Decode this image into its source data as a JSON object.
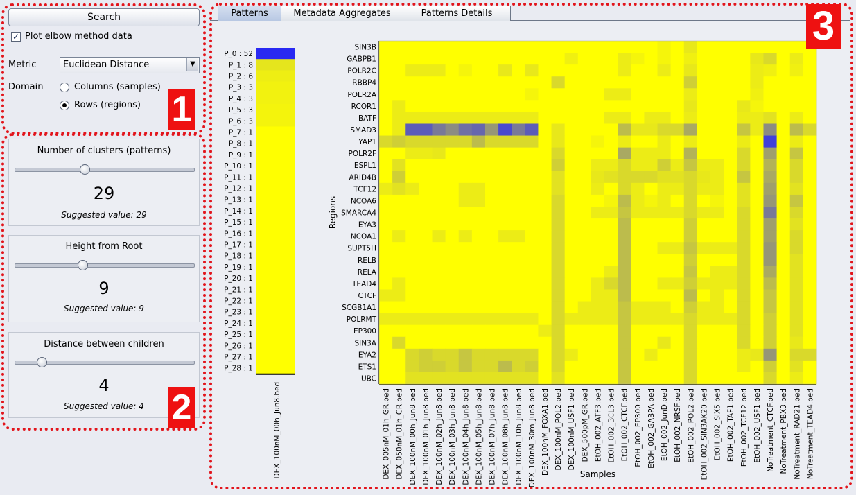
{
  "left": {
    "search_label": "Search",
    "elbow_checkbox": {
      "label": "Plot elbow method data",
      "checked": true
    },
    "metric": {
      "label": "Metric",
      "value": "Euclidean Distance"
    },
    "domain": {
      "label": "Domain",
      "options": [
        "Columns (samples)",
        "Rows (regions)"
      ],
      "selected": 1
    },
    "sliders": [
      {
        "title": "Number of clusters (patterns)",
        "value": "29",
        "suggested": "Suggested value: 29",
        "position": 0.39
      },
      {
        "title": "Height from Root",
        "value": "9",
        "suggested": "Suggested value: 9",
        "position": 0.38
      },
      {
        "title": "Distance between children",
        "value": "4",
        "suggested": "Suggested value: 4",
        "position": 0.15
      }
    ]
  },
  "badges": [
    "1",
    "2",
    "3"
  ],
  "tabs": [
    {
      "label": "Patterns",
      "selected": true
    },
    {
      "label": "Metadata Aggregates",
      "selected": false
    },
    {
      "label": "Patterns Details",
      "selected": false
    }
  ],
  "patterns_chart": {
    "column_label": "DEX_100nM_00h_Jun8.bed",
    "labels": [
      "P_0 : 52",
      "P_1 : 8",
      "P_2 : 6",
      "P_3 : 3",
      "P_4 : 3",
      "P_5 : 3",
      "P_6 : 3",
      "P_7 : 1",
      "P_8 : 1",
      "P_9 : 1",
      "P_10 : 1",
      "P_11 : 1",
      "P_12 : 1",
      "P_13 : 1",
      "P_14 : 1",
      "P_15 : 1",
      "P_16 : 1",
      "P_17 : 1",
      "P_18 : 1",
      "P_19 : 1",
      "P_20 : 1",
      "P_21 : 1",
      "P_22 : 1",
      "P_23 : 1",
      "P_24 : 1",
      "P_25 : 1",
      "P_26 : 1",
      "P_27 : 1",
      "P_28 : 1"
    ],
    "intensity": [
      1.0,
      0.12,
      0.08,
      0.06,
      0.06,
      0.05,
      0.05,
      0,
      0,
      0,
      0,
      0,
      0,
      0,
      0,
      0,
      0,
      0,
      0,
      0,
      0,
      0,
      0,
      0,
      0,
      0,
      0,
      0,
      0
    ]
  },
  "chart_data": {
    "type": "heatmap",
    "xlabel": "Samples",
    "ylabel": "Regions",
    "colors": {
      "low": "#ffff00",
      "high": "#1e1eff"
    },
    "rows": [
      "SIN3B",
      "GABPB1",
      "POLR2C",
      "RBBP4",
      "POLR2A",
      "RCOR1",
      "BATF",
      "SMAD3",
      "YAP1",
      "POLR2F",
      "ESPL1",
      "ARID4B",
      "TCF12",
      "NCOA6",
      "SMARCA4",
      "EYA3",
      "NCOA1",
      "SUPT5H",
      "RELB",
      "RELA",
      "TEAD4",
      "CTCF",
      "SCGB1A1",
      "POLRMT",
      "EP300",
      "SIN3A",
      "EYA2",
      "ETS1",
      "UBC"
    ],
    "columns": [
      "DEX_005nM_01h_GR.bed",
      "DEX_050nM_01h_GR.bed",
      "DEX_100nM_00h_Jun8.bed",
      "DEX_100nM_01h_Jun8.bed",
      "DEX_100nM_02h_Jun8.bed",
      "DEX_100nM_03h_Jun8.bed",
      "DEX_100nM_04h_Jun8.bed",
      "DEX_100nM_05h_Jun8.bed",
      "DEX_100nM_07h_Jun8.bed",
      "DEX_100nM_08h_Jun8.bed",
      "DEX_100nM_10h_Jun8.bed",
      "DEX_100nM_30m_Jun8.bed",
      "DEX_100nM_FOXA1.bed",
      "DEX_100nM_POL2.bed",
      "DEX_100nM_USF1.bed",
      "DEX_500pM_GR.bed",
      "EtOH_002_ATF3.bed",
      "EtOH_002_BCL3.bed",
      "EtOH_002_CTCF.bed",
      "EtOH_002_EP300.bed",
      "EtOH_002_GABPA.bed",
      "EtOH_002_JunD.bed",
      "EtOH_002_NRSF.bed",
      "EtOH_002_POL2.bed",
      "EtOH_002_SIN3AK20.bed",
      "EtOH_002_SIX5.bed",
      "EtOH_002_TAF1.bed",
      "EtOH_002_TCF12.bed",
      "EtOH_002_USF1.bed",
      "NoTreatment_CTCF.bed",
      "NoTreatment_PBX3.bed",
      "NoTreatment_RAD21.bed",
      "NoTreatment_TEAD4.bed"
    ],
    "values": [
      [
        0,
        0,
        0,
        0,
        0,
        0,
        0,
        0,
        0,
        0,
        0,
        0,
        0,
        0,
        0,
        0,
        0,
        0,
        0,
        0,
        0,
        0.05,
        0,
        0.12,
        0,
        0,
        0,
        0,
        0,
        0,
        0,
        0,
        0
      ],
      [
        0,
        0,
        0,
        0,
        0,
        0,
        0,
        0,
        0,
        0,
        0,
        0,
        0,
        0,
        0.08,
        0,
        0,
        0,
        0.1,
        0.05,
        0,
        0.05,
        0,
        0.08,
        0,
        0,
        0,
        0,
        0.12,
        0.2,
        0,
        0.1,
        0
      ],
      [
        0,
        0,
        0.1,
        0.1,
        0.1,
        0,
        0.05,
        0,
        0,
        0.12,
        0,
        0.12,
        0,
        0,
        0,
        0,
        0,
        0,
        0.1,
        0,
        0,
        0.1,
        0,
        0.12,
        0,
        0,
        0,
        0,
        0.1,
        0.08,
        0,
        0.08,
        0
      ],
      [
        0,
        0,
        0,
        0,
        0,
        0,
        0,
        0,
        0,
        0,
        0,
        0,
        0,
        0.2,
        0,
        0,
        0,
        0,
        0,
        0,
        0,
        0,
        0,
        0.25,
        0,
        0,
        0,
        0,
        0.1,
        0,
        0,
        0,
        0
      ],
      [
        0,
        0,
        0,
        0,
        0,
        0,
        0,
        0,
        0,
        0,
        0,
        0.05,
        0,
        0,
        0,
        0,
        0,
        0.1,
        0.1,
        0,
        0,
        0,
        0,
        0.1,
        0,
        0,
        0,
        0,
        0.08,
        0,
        0,
        0,
        0
      ],
      [
        0,
        0.1,
        0,
        0,
        0,
        0,
        0,
        0,
        0,
        0,
        0,
        0,
        0,
        0,
        0,
        0,
        0,
        0,
        0,
        0,
        0,
        0,
        0,
        0.12,
        0,
        0,
        0,
        0.12,
        0.05,
        0,
        0,
        0,
        0
      ],
      [
        0,
        0.1,
        0.1,
        0.1,
        0.1,
        0.1,
        0.1,
        0.1,
        0.1,
        0.1,
        0.1,
        0.1,
        0,
        0,
        0,
        0,
        0,
        0.1,
        0.1,
        0,
        0.1,
        0.1,
        0,
        0.1,
        0,
        0,
        0,
        0.1,
        0.1,
        0.15,
        0,
        0.1,
        0
      ],
      [
        0,
        0.1,
        0.85,
        0.85,
        0.7,
        0.6,
        0.75,
        0.8,
        0.55,
        0.95,
        0.7,
        0.85,
        0,
        0.12,
        0,
        0,
        0,
        0,
        0.35,
        0.12,
        0.12,
        0.2,
        0.2,
        0.45,
        0,
        0,
        0,
        0.3,
        0.1,
        0.6,
        0,
        0.35,
        0.2
      ],
      [
        0.2,
        0.25,
        0.2,
        0.2,
        0.2,
        0.2,
        0.2,
        0.35,
        0.2,
        0.2,
        0.2,
        0.2,
        0,
        0.12,
        0,
        0,
        0.05,
        0,
        0.1,
        0,
        0,
        0.1,
        0,
        0.1,
        0,
        0,
        0,
        0.1,
        0,
        1.0,
        0,
        0.1,
        0
      ],
      [
        0,
        0,
        0.1,
        0.1,
        0.12,
        0,
        0,
        0,
        0,
        0,
        0,
        0,
        0,
        0.2,
        0,
        0,
        0,
        0,
        0.45,
        0.1,
        0.1,
        0.1,
        0,
        0.4,
        0,
        0,
        0,
        0.2,
        0,
        0.5,
        0,
        0.3,
        0
      ],
      [
        0,
        0.15,
        0,
        0,
        0,
        0,
        0,
        0,
        0,
        0,
        0,
        0,
        0,
        0.25,
        0,
        0,
        0.1,
        0.1,
        0.2,
        0.1,
        0.1,
        0.25,
        0.1,
        0.3,
        0.1,
        0.1,
        0,
        0.2,
        0,
        0.4,
        0,
        0.2,
        0
      ],
      [
        0,
        0.25,
        0,
        0,
        0,
        0,
        0,
        0,
        0,
        0,
        0,
        0,
        0,
        0.15,
        0,
        0,
        0.12,
        0.15,
        0.2,
        0.2,
        0.2,
        0.15,
        0.15,
        0.2,
        0.12,
        0.1,
        0,
        0.3,
        0,
        0.45,
        0,
        0.2,
        0
      ],
      [
        0.1,
        0.15,
        0.1,
        0,
        0,
        0,
        0.1,
        0.1,
        0,
        0,
        0,
        0,
        0,
        0.15,
        0,
        0,
        0.1,
        0,
        0.2,
        0.1,
        0,
        0.1,
        0.1,
        0.2,
        0.1,
        0.1,
        0,
        0.15,
        0,
        0.5,
        0,
        0.15,
        0
      ],
      [
        0,
        0,
        0,
        0,
        0,
        0,
        0.1,
        0.1,
        0,
        0,
        0,
        0,
        0,
        0.2,
        0,
        0,
        0,
        0.05,
        0.35,
        0.1,
        0.05,
        0.1,
        0,
        0.2,
        0,
        0.05,
        0,
        0.15,
        0,
        0.55,
        0,
        0.3,
        0
      ],
      [
        0,
        0,
        0,
        0,
        0,
        0,
        0,
        0,
        0,
        0,
        0,
        0,
        0,
        0.2,
        0,
        0,
        0.1,
        0.1,
        0.3,
        0.1,
        0.1,
        0.1,
        0.1,
        0.2,
        0.1,
        0.1,
        0,
        0.2,
        0,
        0.7,
        0,
        0.2,
        0
      ],
      [
        0,
        0,
        0,
        0,
        0,
        0,
        0,
        0,
        0,
        0,
        0,
        0,
        0,
        0.2,
        0,
        0,
        0,
        0,
        0.35,
        0,
        0,
        0,
        0,
        0.25,
        0,
        0,
        0,
        0.2,
        0,
        0.5,
        0,
        0.15,
        0
      ],
      [
        0,
        0.1,
        0,
        0,
        0.1,
        0,
        0.1,
        0,
        0,
        0.1,
        0.1,
        0,
        0,
        0.2,
        0,
        0,
        0,
        0,
        0.35,
        0,
        0,
        0,
        0,
        0.25,
        0,
        0,
        0,
        0.2,
        0,
        0.5,
        0,
        0.2,
        0
      ],
      [
        0,
        0,
        0,
        0,
        0,
        0,
        0,
        0,
        0,
        0,
        0,
        0,
        0,
        0.2,
        0,
        0,
        0,
        0,
        0.35,
        0,
        0,
        0.1,
        0.1,
        0.3,
        0.1,
        0.1,
        0.1,
        0.2,
        0,
        0.55,
        0,
        0.2,
        0
      ],
      [
        0,
        0,
        0,
        0,
        0,
        0,
        0,
        0,
        0,
        0,
        0,
        0,
        0,
        0.2,
        0,
        0,
        0,
        0,
        0.35,
        0,
        0,
        0,
        0,
        0.25,
        0,
        0,
        0,
        0.2,
        0,
        0.55,
        0,
        0.15,
        0
      ],
      [
        0,
        0,
        0,
        0,
        0,
        0,
        0,
        0,
        0,
        0,
        0,
        0,
        0,
        0.2,
        0,
        0,
        0,
        0.1,
        0.35,
        0,
        0,
        0,
        0,
        0.3,
        0,
        0.1,
        0.1,
        0.2,
        0,
        0.45,
        0,
        0.15,
        0
      ],
      [
        0,
        0.1,
        0,
        0,
        0,
        0,
        0,
        0,
        0,
        0,
        0,
        0,
        0,
        0.2,
        0,
        0,
        0.1,
        0.2,
        0.35,
        0,
        0,
        0.1,
        0.1,
        0.25,
        0.1,
        0.1,
        0.1,
        0.2,
        0,
        0.35,
        0,
        0.15,
        0
      ],
      [
        0.1,
        0.1,
        0,
        0,
        0,
        0,
        0,
        0,
        0,
        0,
        0,
        0,
        0,
        0.2,
        0,
        0,
        0.1,
        0.1,
        0.35,
        0,
        0,
        0,
        0,
        0.35,
        0,
        0.1,
        0,
        0.2,
        0,
        0.3,
        0,
        0.15,
        0
      ],
      [
        0,
        0,
        0,
        0,
        0,
        0,
        0,
        0,
        0,
        0,
        0,
        0,
        0,
        0.2,
        0,
        0.1,
        0.1,
        0.1,
        0.3,
        0.1,
        0.1,
        0.1,
        0,
        0.25,
        0.1,
        0.1,
        0,
        0.2,
        0,
        0.3,
        0,
        0.15,
        0
      ],
      [
        0.1,
        0.1,
        0.1,
        0.1,
        0.1,
        0.1,
        0.1,
        0.1,
        0.1,
        0.1,
        0.1,
        0.1,
        0,
        0.2,
        0.1,
        0.1,
        0.1,
        0.1,
        0.3,
        0.1,
        0.1,
        0.1,
        0.1,
        0.2,
        0.1,
        0.1,
        0.1,
        0.2,
        0,
        0.25,
        0,
        0.15,
        0
      ],
      [
        0,
        0,
        0,
        0,
        0,
        0,
        0,
        0,
        0,
        0,
        0,
        0,
        0.1,
        0.2,
        0,
        0,
        0,
        0,
        0.3,
        0,
        0,
        0,
        0,
        0.2,
        0,
        0,
        0,
        0.2,
        0,
        0.25,
        0,
        0.15,
        0
      ],
      [
        0,
        0.2,
        0,
        0,
        0,
        0,
        0,
        0,
        0,
        0,
        0,
        0,
        0,
        0.2,
        0,
        0,
        0,
        0,
        0.3,
        0,
        0,
        0.12,
        0,
        0.2,
        0,
        0,
        0,
        0.2,
        0,
        0.25,
        0,
        0.12,
        0
      ],
      [
        0,
        0,
        0.2,
        0.25,
        0.2,
        0.2,
        0.3,
        0.2,
        0.2,
        0.2,
        0.2,
        0.2,
        0,
        0.2,
        0.1,
        0,
        0,
        0,
        0.3,
        0,
        0.1,
        0,
        0,
        0.2,
        0,
        0,
        0,
        0.1,
        0.12,
        0.55,
        0,
        0.2,
        0.2
      ],
      [
        0,
        0,
        0.2,
        0.25,
        0.25,
        0.2,
        0.3,
        0.2,
        0.2,
        0.35,
        0.2,
        0.25,
        0,
        0.2,
        0,
        0,
        0,
        0,
        0.3,
        0,
        0,
        0,
        0,
        0.2,
        0,
        0,
        0,
        0.1,
        0,
        0.25,
        0,
        0.15,
        0
      ],
      [
        0,
        0,
        0.15,
        0.15,
        0.15,
        0.15,
        0.15,
        0.15,
        0.15,
        0.15,
        0.15,
        0.15,
        0,
        0.15,
        0,
        0,
        0,
        0,
        0.3,
        0,
        0,
        0,
        0,
        0.2,
        0,
        0,
        0,
        0,
        0,
        0.2,
        0,
        0.1,
        0
      ]
    ]
  }
}
